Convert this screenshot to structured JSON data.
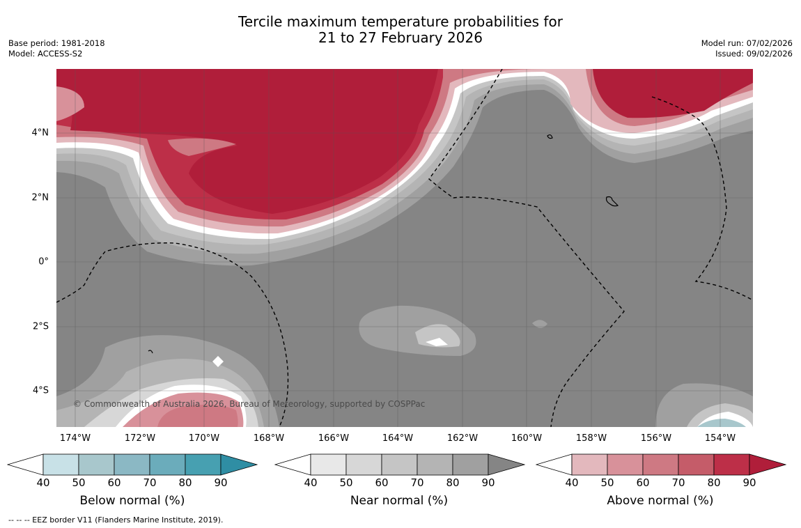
{
  "header": {
    "title_line1": "Tercile maximum temperature probabilities for",
    "title_line2": "21 to 27 February 2026",
    "base_period": "Base period: 1981-2018",
    "model": "Model: ACCESS-S2",
    "model_run": "Model run: 07/02/2026",
    "issued": "Issued: 09/02/2026"
  },
  "map": {
    "y_ticks": [
      "4°N",
      "2°N",
      "0°",
      "2°S",
      "4°S"
    ],
    "x_ticks": [
      "174°W",
      "172°W",
      "170°W",
      "168°W",
      "166°W",
      "164°W",
      "162°W",
      "160°W",
      "158°W",
      "156°W",
      "154°W"
    ],
    "copyright": "© Commonwealth of Australia 2026, Bureau of Meteorology, supported by COSPPac",
    "colors": {
      "background_near_normal_max": "#858585",
      "above_normal_max": "#b01e3a"
    }
  },
  "legends": [
    {
      "title": "Below normal (%)",
      "labels": [
        "40",
        "50",
        "60",
        "70",
        "80",
        "90"
      ],
      "colors": [
        "#c8e1e7",
        "#a8c7cc",
        "#8bb8c4",
        "#6bacbb",
        "#47a0b1",
        "#2f8ea4"
      ]
    },
    {
      "title": "Near normal (%)",
      "labels": [
        "40",
        "50",
        "60",
        "70",
        "80",
        "90"
      ],
      "colors": [
        "#e8e8e8",
        "#d7d7d7",
        "#c5c5c5",
        "#b4b4b4",
        "#a0a0a0",
        "#858585"
      ]
    },
    {
      "title": "Above normal (%)",
      "labels": [
        "40",
        "50",
        "60",
        "70",
        "80",
        "90"
      ],
      "colors": [
        "#e3b8bd",
        "#d8919a",
        "#ce7983",
        "#c55c69",
        "#bd2f48",
        "#b01e3a"
      ]
    }
  ],
  "footer": {
    "eez_note": "--  --  -- EEZ border V11 (Flanders Marine Institute, 2019)."
  }
}
